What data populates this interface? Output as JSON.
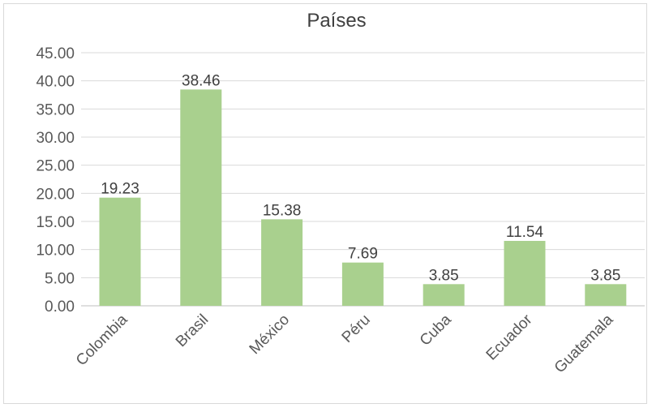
{
  "chart_data": {
    "type": "bar",
    "title": "Países",
    "categories": [
      "Colombia",
      "Brasil",
      "México",
      "Péru",
      "Cuba",
      "Ecuador",
      "Guatemala"
    ],
    "values": [
      19.23,
      38.46,
      15.38,
      7.69,
      3.85,
      11.54,
      3.85
    ],
    "data_labels": [
      "19.23",
      "38.46",
      "15.38",
      "7.69",
      "3.85",
      "11.54",
      "3.85"
    ],
    "y_ticks": [
      "0.00",
      "5.00",
      "10.00",
      "15.00",
      "20.00",
      "25.00",
      "30.00",
      "35.00",
      "40.00",
      "45.00"
    ],
    "ylim": [
      0,
      45
    ],
    "grid": true,
    "bar_color": "#a9d08e",
    "xlabel": "",
    "ylabel": ""
  }
}
